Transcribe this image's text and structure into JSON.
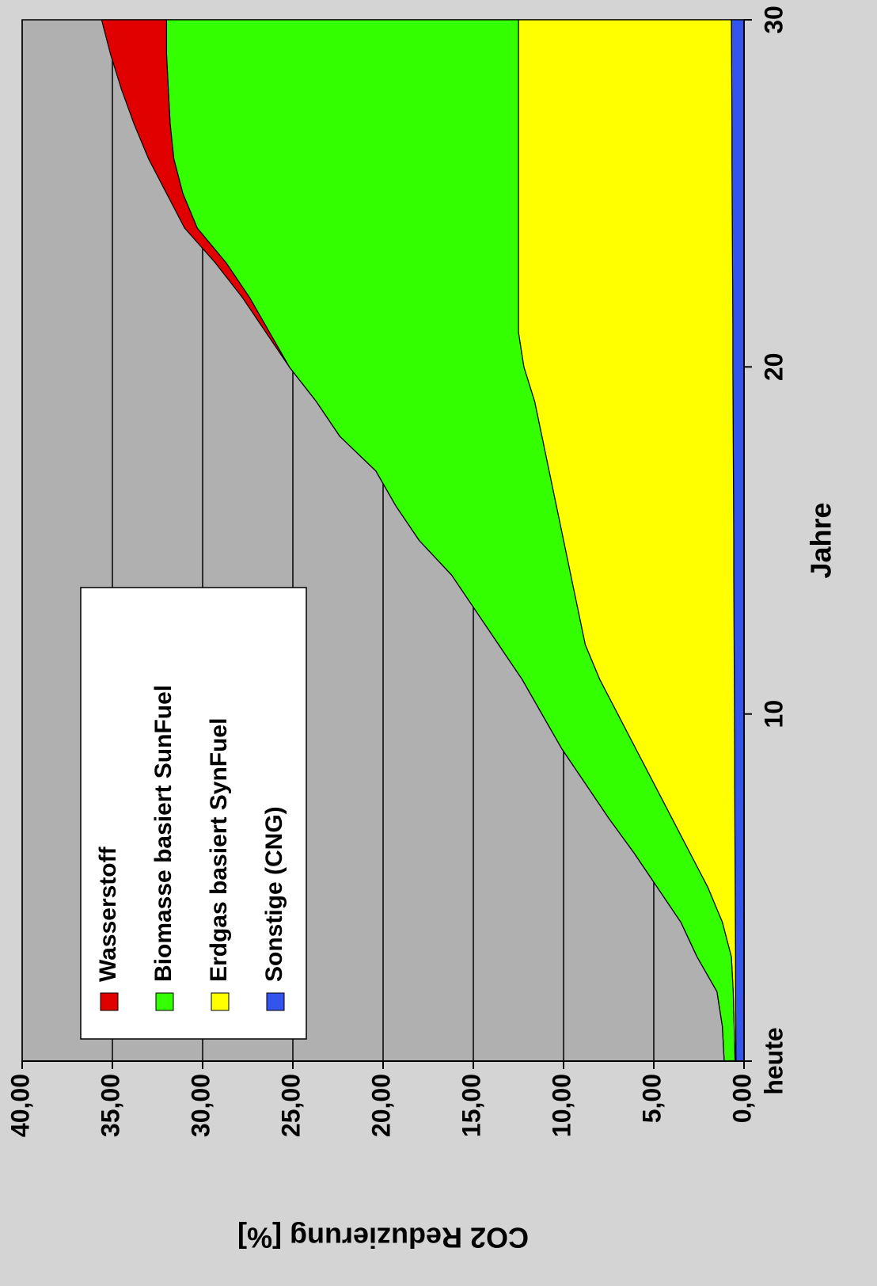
{
  "chart_data": {
    "type": "stacked_area",
    "x_label": "Jahre",
    "y_label": "CO2 Reduzierung [%]",
    "x": [
      0,
      1,
      2,
      3,
      4,
      5,
      6,
      7,
      8,
      9,
      10,
      11,
      12,
      13,
      14,
      15,
      16,
      17,
      18,
      19,
      20,
      21,
      22,
      23,
      24,
      25,
      26,
      27,
      28,
      29,
      30
    ],
    "series": [
      {
        "name": "Wasserstoff",
        "color": "#e00000",
        "values": [
          0,
          0,
          0,
          0,
          0,
          0,
          0,
          0,
          0,
          0,
          0,
          0,
          0,
          0,
          0,
          0,
          0,
          0,
          0,
          0,
          0,
          0.2,
          0.4,
          0.6,
          0.7,
          0.9,
          1.4,
          2.0,
          2.6,
          3.1,
          3.6
        ]
      },
      {
        "name": "Biomasse basiert SunFuel",
        "color": "#33ff00",
        "values": [
          0.6,
          0.65,
          0.9,
          1.9,
          2.3,
          2.8,
          3.1,
          3.5,
          3.8,
          4.1,
          4.2,
          4.3,
          4.8,
          5.7,
          6.6,
          8.0,
          8.9,
          9.6,
          11.2,
          12.1,
          13.0,
          13.8,
          14.9,
          16.2,
          17.8,
          18.6,
          19.1,
          19.3,
          19.4,
          19.5,
          19.5
        ]
      },
      {
        "name": "Erdgas basiert SynFuel",
        "color": "#ffff00",
        "values": [
          0.05,
          0.09,
          0.13,
          0.23,
          0.72,
          1.51,
          2.5,
          3.49,
          4.48,
          5.48,
          6.47,
          7.46,
          8.25,
          8.64,
          9.03,
          9.43,
          9.82,
          10.21,
          10.6,
          10.99,
          11.58,
          11.88,
          11.87,
          11.86,
          11.85,
          11.84,
          11.83,
          11.83,
          11.82,
          11.81,
          11.8
        ]
      },
      {
        "name": "Sonstige (CNG)",
        "color": "#3355ee",
        "values": [
          0.45,
          0.46,
          0.47,
          0.47,
          0.48,
          0.49,
          0.5,
          0.51,
          0.52,
          0.52,
          0.53,
          0.54,
          0.55,
          0.56,
          0.57,
          0.57,
          0.58,
          0.59,
          0.6,
          0.61,
          0.62,
          0.62,
          0.63,
          0.64,
          0.65,
          0.66,
          0.67,
          0.67,
          0.68,
          0.69,
          0.7
        ]
      }
    ],
    "xlim": [
      0,
      30
    ],
    "xticks": [
      {
        "value": 0,
        "label": "heute"
      },
      10,
      20,
      30
    ],
    "ylim": [
      0,
      40
    ],
    "yticks": [
      {
        "value": 0,
        "label": "0,00"
      },
      {
        "value": 5,
        "label": "5,00"
      },
      {
        "value": 10,
        "label": "10,00"
      },
      {
        "value": 15,
        "label": "15,00"
      },
      {
        "value": 20,
        "label": "20,00"
      },
      {
        "value": 25,
        "label": "25,00"
      },
      {
        "value": 30,
        "label": "30,00"
      },
      {
        "value": 35,
        "label": "35,00"
      },
      {
        "value": 40,
        "label": "40,00"
      }
    ],
    "grid": true,
    "legend": "upper left"
  }
}
